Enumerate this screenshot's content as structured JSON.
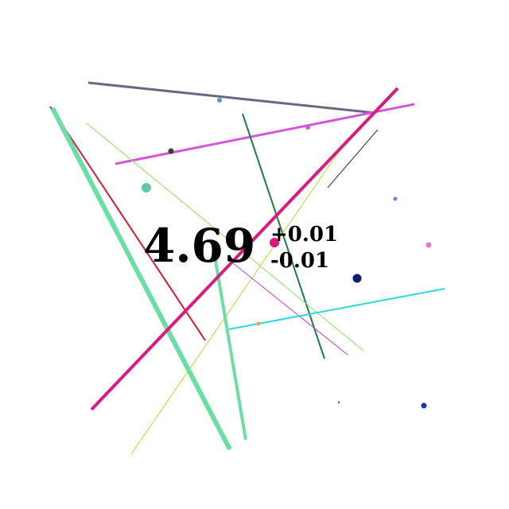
{
  "measurement": {
    "value": "4.69",
    "upper_error": "+0.01",
    "lower_error": "-0.01"
  },
  "colors": {
    "background": "#ffffff",
    "text": "#000000"
  }
}
